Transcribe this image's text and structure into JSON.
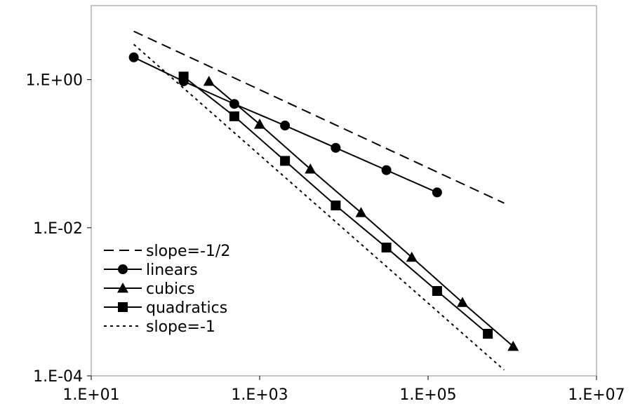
{
  "chart_data": {
    "type": "scatter",
    "x_scale": "log",
    "y_scale": "log",
    "xlim": [
      10,
      10000000
    ],
    "ylim": [
      0.0001,
      10
    ],
    "x_ticks": [
      10,
      1000,
      100000,
      10000000
    ],
    "x_tick_labels": [
      "1.E+01",
      "1.E+03",
      "1.E+05",
      "1.E+07"
    ],
    "y_ticks": [
      0.0001,
      0.01,
      1
    ],
    "y_tick_labels": [
      "1.E-04",
      "1.E-02",
      "1.E+00"
    ],
    "grid": false,
    "legend_position": "bottom-left",
    "series": [
      {
        "name": "slope=-1/2",
        "style": "dashed-line",
        "color": "#000000",
        "x": [
          32,
          800000
        ],
        "y": [
          4.5,
          0.0215
        ]
      },
      {
        "name": "linears",
        "style": "line-circle",
        "color": "#000000",
        "x": [
          32,
          125,
          500,
          2000,
          8000,
          32000,
          128000
        ],
        "y": [
          2.0,
          0.95,
          0.47,
          0.24,
          0.12,
          0.06,
          0.03
        ]
      },
      {
        "name": "cubics",
        "style": "line-triangle",
        "color": "#000000",
        "x": [
          250,
          1000,
          4000,
          16000,
          64000,
          256000,
          1024000
        ],
        "y": [
          0.95,
          0.25,
          0.062,
          0.016,
          0.004,
          0.00098,
          0.00025
        ]
      },
      {
        "name": "quadratics",
        "style": "line-square",
        "color": "#000000",
        "x": [
          125,
          500,
          2000,
          8000,
          32000,
          128000,
          512000
        ],
        "y": [
          1.1,
          0.32,
          0.08,
          0.02,
          0.0054,
          0.0014,
          0.00037
        ]
      },
      {
        "name": "slope=-1",
        "style": "dotted-line",
        "color": "#000000",
        "x": [
          32,
          800000
        ],
        "y": [
          3.0,
          0.00012
        ]
      }
    ]
  }
}
